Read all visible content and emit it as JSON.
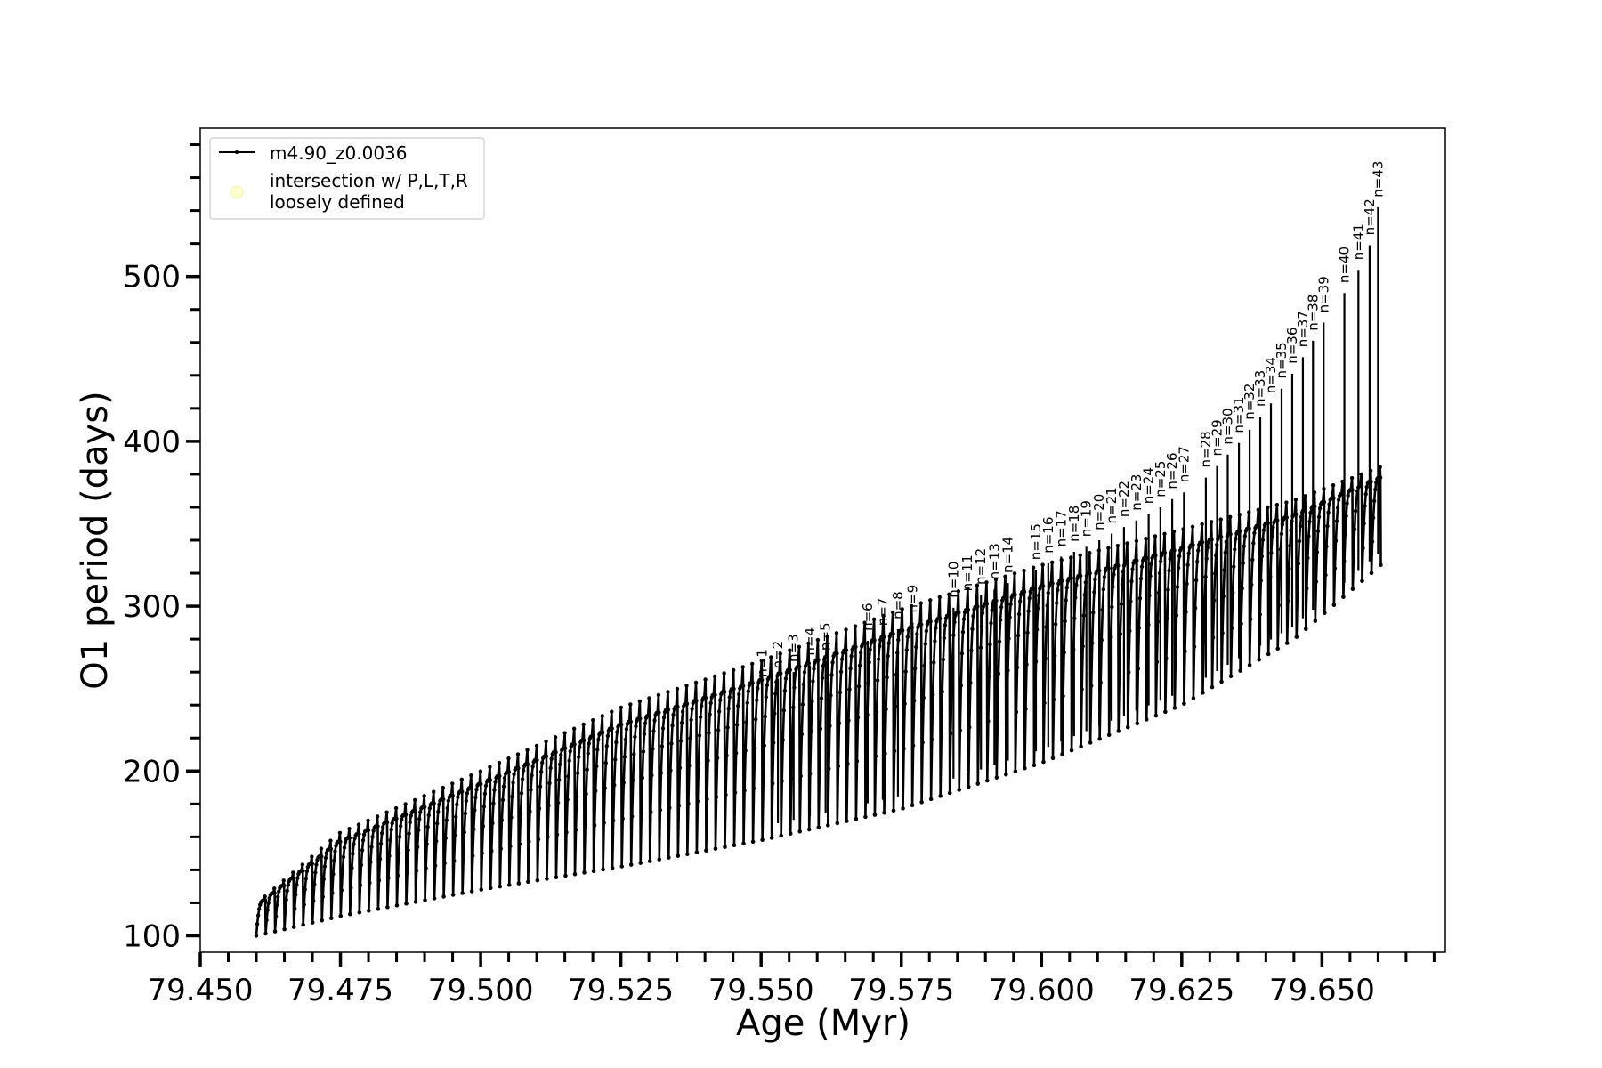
{
  "chart_data": {
    "type": "line",
    "title": "",
    "xlabel": "Age (Myr)",
    "ylabel": "O1 period (days)",
    "xlim": [
      79.45,
      79.672
    ],
    "ylim": [
      90,
      590
    ],
    "xticks": [
      "79.450",
      "79.475",
      "79.500",
      "79.525",
      "79.550",
      "79.575",
      "79.600",
      "79.625",
      "79.650"
    ],
    "yticks": [
      "100",
      "200",
      "300",
      "400",
      "500"
    ],
    "grid": false,
    "legend_position": "upper-left",
    "legend": {
      "line_label": "m4.90_z0.0036",
      "marker_label_line1": "intersection w/ P,L,T,R",
      "marker_label_line2": "loosely defined",
      "marker_color": "#ffffcc"
    },
    "series": [
      {
        "name": "m4.90_z0.0036",
        "color": "#000000",
        "description_pulses": "sawtooth pulses",
        "age_start": 79.46,
        "age_end": 79.6605,
        "n_pulses": 120,
        "envelope_points": [
          {
            "x": 79.46,
            "base": 100,
            "peak": 117
          },
          {
            "x": 79.475,
            "base": 112,
            "peak": 157
          },
          {
            "x": 79.5,
            "base": 128,
            "peak": 192
          },
          {
            "x": 79.525,
            "base": 142,
            "peak": 228
          },
          {
            "x": 79.55,
            "base": 158,
            "peak": 255
          },
          {
            "x": 79.575,
            "base": 177,
            "peak": 285
          },
          {
            "x": 79.6,
            "base": 205,
            "peak": 312
          },
          {
            "x": 79.625,
            "base": 240,
            "peak": 335
          },
          {
            "x": 79.645,
            "base": 280,
            "peak": 355
          },
          {
            "x": 79.6605,
            "base": 325,
            "peak": 378
          }
        ]
      }
    ],
    "annotations": [
      {
        "label": "n=1",
        "x": 79.5502,
        "y": 257
      },
      {
        "label": "n=2",
        "x": 79.553,
        "y": 262
      },
      {
        "label": "n=3",
        "x": 79.5558,
        "y": 266
      },
      {
        "label": "n=4",
        "x": 79.5587,
        "y": 270
      },
      {
        "label": "n=5",
        "x": 79.5615,
        "y": 273
      },
      {
        "label": "n=6",
        "x": 79.569,
        "y": 285
      },
      {
        "label": "n=7",
        "x": 79.5717,
        "y": 288
      },
      {
        "label": "n=8",
        "x": 79.5744,
        "y": 292
      },
      {
        "label": "n=9",
        "x": 79.577,
        "y": 296
      },
      {
        "label": "n=10",
        "x": 79.5843,
        "y": 305
      },
      {
        "label": "n=11",
        "x": 79.5868,
        "y": 309
      },
      {
        "label": "n=12",
        "x": 79.5892,
        "y": 313
      },
      {
        "label": "n=13",
        "x": 79.5916,
        "y": 316
      },
      {
        "label": "n=14",
        "x": 79.594,
        "y": 320
      },
      {
        "label": "n=15",
        "x": 79.599,
        "y": 328
      },
      {
        "label": "n=16",
        "x": 79.6012,
        "y": 332
      },
      {
        "label": "n=17",
        "x": 79.6035,
        "y": 336
      },
      {
        "label": "n=18",
        "x": 79.6058,
        "y": 339
      },
      {
        "label": "n=19",
        "x": 79.608,
        "y": 342
      },
      {
        "label": "n=20",
        "x": 79.6103,
        "y": 346
      },
      {
        "label": "n=21",
        "x": 79.6125,
        "y": 350
      },
      {
        "label": "n=22",
        "x": 79.6147,
        "y": 354
      },
      {
        "label": "n=23",
        "x": 79.6169,
        "y": 358
      },
      {
        "label": "n=24",
        "x": 79.6191,
        "y": 362
      },
      {
        "label": "n=25",
        "x": 79.6212,
        "y": 366
      },
      {
        "label": "n=26",
        "x": 79.6233,
        "y": 371
      },
      {
        "label": "n=27",
        "x": 79.6254,
        "y": 375
      },
      {
        "label": "n=28",
        "x": 79.6293,
        "y": 384
      },
      {
        "label": "n=29",
        "x": 79.6313,
        "y": 391
      },
      {
        "label": "n=30",
        "x": 79.6332,
        "y": 398
      },
      {
        "label": "n=31",
        "x": 79.6352,
        "y": 405
      },
      {
        "label": "n=32",
        "x": 79.6371,
        "y": 413
      },
      {
        "label": "n=33",
        "x": 79.639,
        "y": 421
      },
      {
        "label": "n=34",
        "x": 79.6409,
        "y": 429
      },
      {
        "label": "n=35",
        "x": 79.6428,
        "y": 438
      },
      {
        "label": "n=36",
        "x": 79.6447,
        "y": 447
      },
      {
        "label": "n=37",
        "x": 79.6466,
        "y": 457
      },
      {
        "label": "n=38",
        "x": 79.6484,
        "y": 467
      },
      {
        "label": "n=39",
        "x": 79.6503,
        "y": 478
      },
      {
        "label": "n=40",
        "x": 79.654,
        "y": 496
      },
      {
        "label": "n=41",
        "x": 79.6565,
        "y": 510
      },
      {
        "label": "n=42",
        "x": 79.6585,
        "y": 525
      },
      {
        "label": "n=43",
        "x": 79.66,
        "y": 548
      }
    ]
  }
}
